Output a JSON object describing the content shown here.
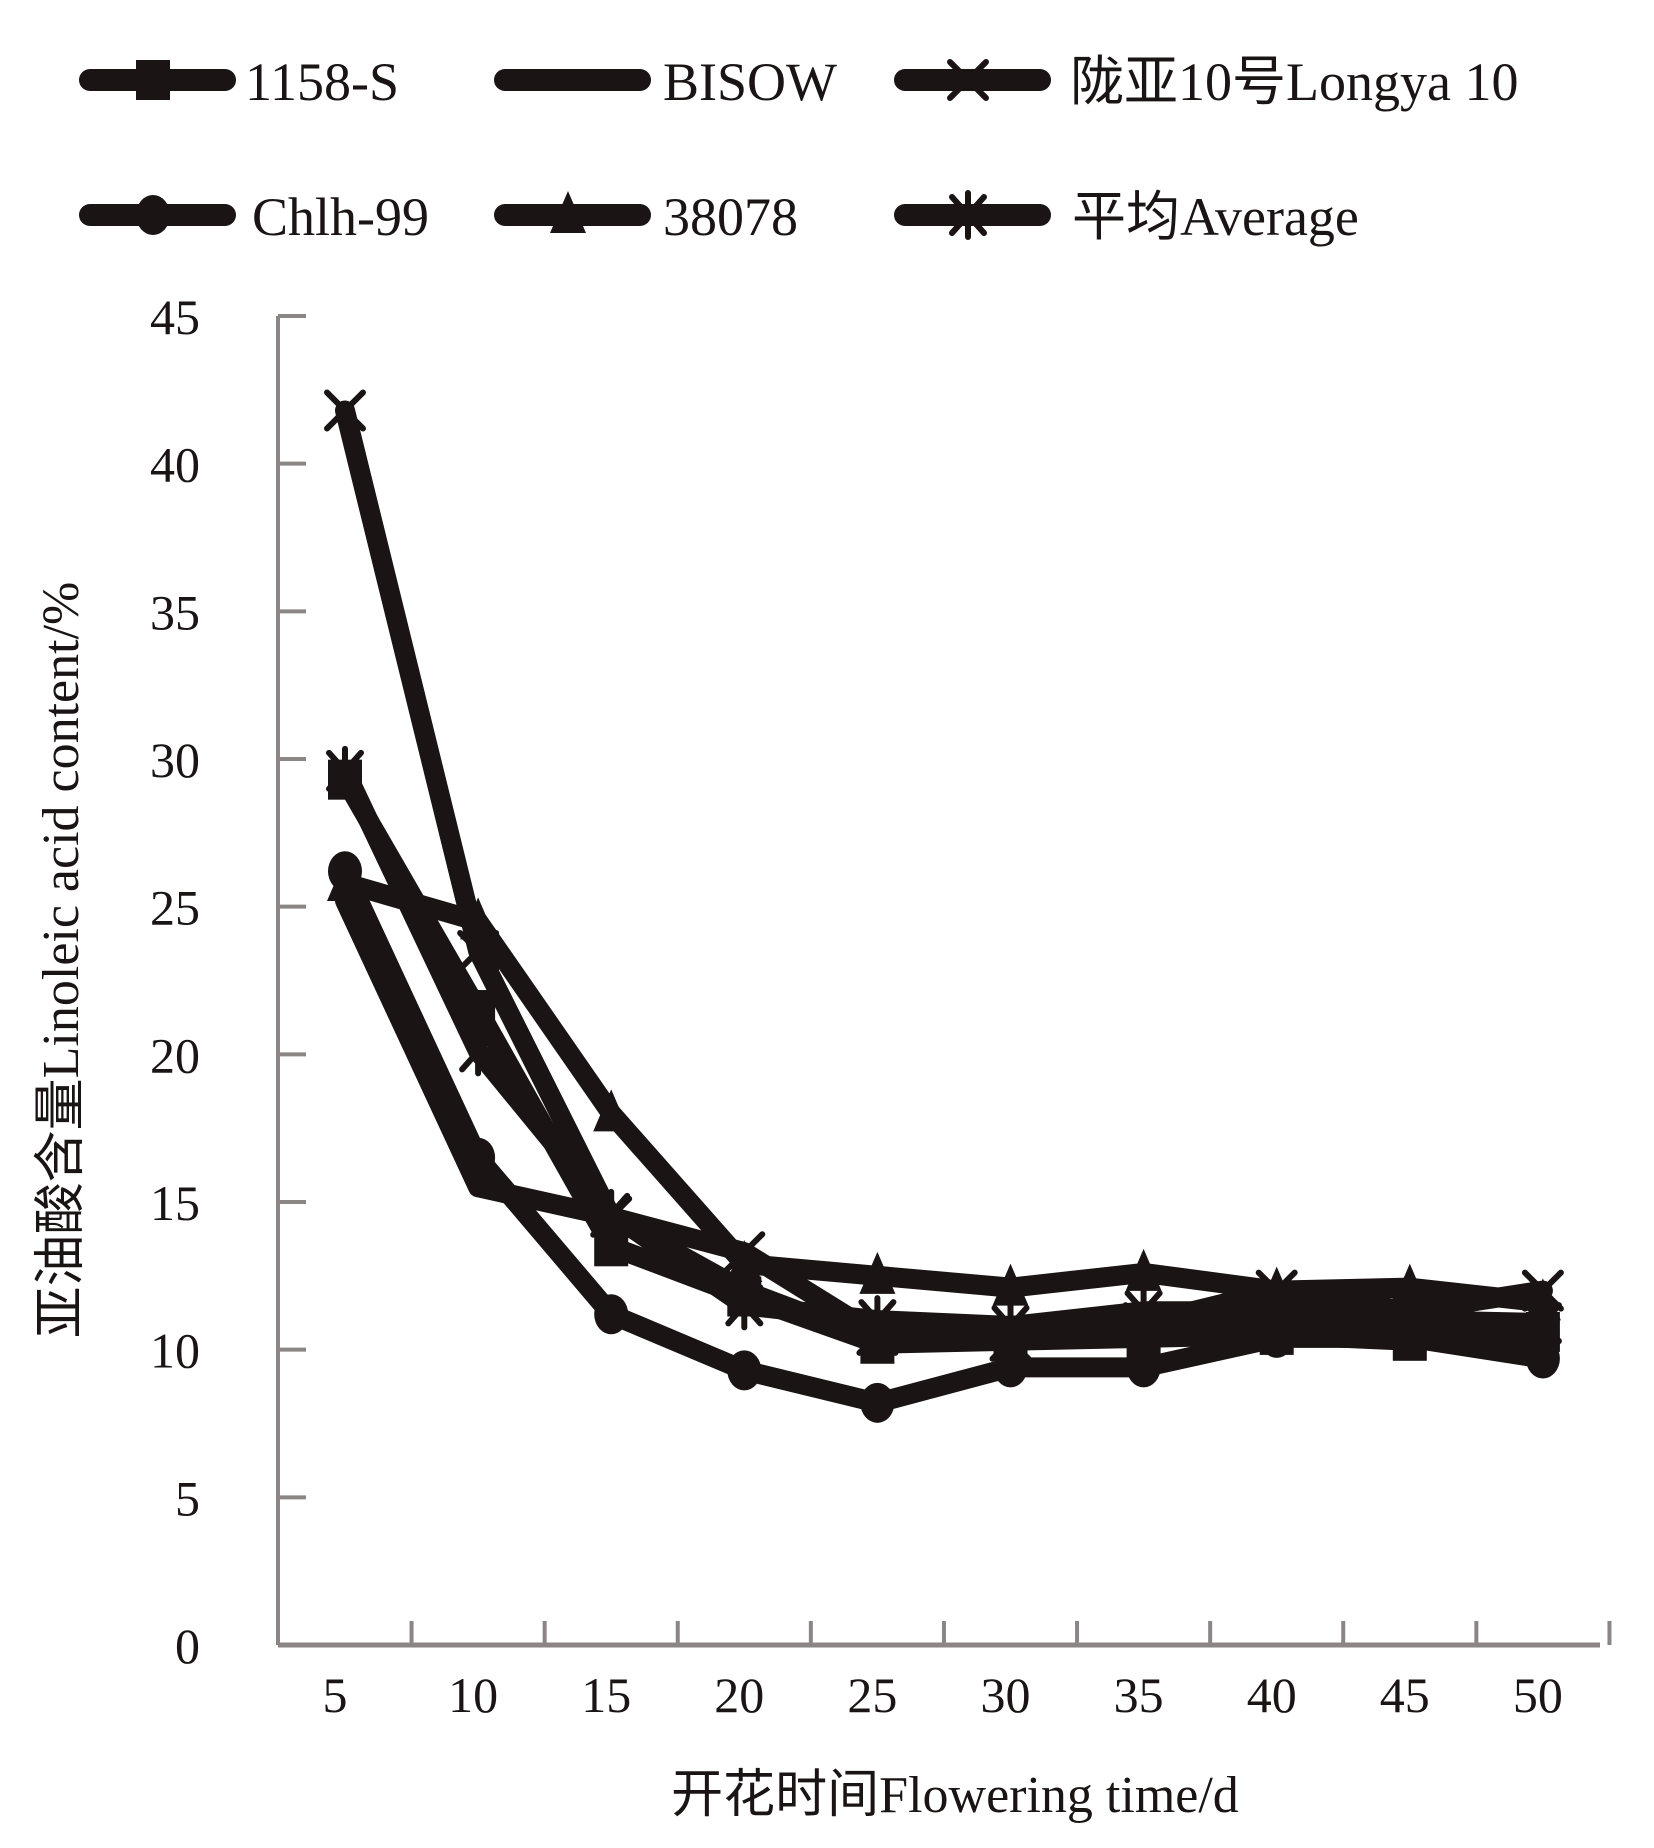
{
  "chart_data": {
    "type": "line",
    "title": "",
    "xlabel": "开花时间Flowering time/d",
    "ylabel": "亚油酸含量Linoleic acid content/%",
    "x": [
      5,
      10,
      15,
      20,
      25,
      30,
      35,
      40,
      45,
      50
    ],
    "x_tick_labels": [
      "5",
      "10",
      "15",
      "20",
      "25",
      "30",
      "35",
      "40",
      "45",
      "50"
    ],
    "y_tick_labels": [
      "0",
      "5",
      "10",
      "15",
      "20",
      "25",
      "30",
      "35",
      "40",
      "45"
    ],
    "ylim": [
      0,
      45
    ],
    "grid": false,
    "legend_position": "top",
    "series": [
      {
        "name": "1158-S",
        "marker": "square",
        "values": [
          29.3,
          21.5,
          13.5,
          11.8,
          10.2,
          10.3,
          10.4,
          10.5,
          10.3,
          10.6
        ]
      },
      {
        "name": "BISOW",
        "marker": "none",
        "values": [
          25.2,
          15.5,
          14.5,
          12.0,
          10.3,
          10.8,
          10.8,
          10.8,
          10.6,
          10.3
        ]
      },
      {
        "name": "陇亚10号Longya 10",
        "marker": "x",
        "values": [
          41.8,
          23.5,
          14.5,
          13.3,
          10.5,
          10.3,
          10.9,
          12.0,
          11.3,
          12.0
        ]
      },
      {
        "name": "Chlh-99",
        "marker": "circle",
        "values": [
          26.2,
          16.5,
          11.2,
          9.3,
          8.2,
          9.4,
          9.4,
          10.4,
          10.4,
          9.7
        ]
      },
      {
        "name": "38078",
        "marker": "triangle",
        "values": [
          25.8,
          24.5,
          18.0,
          12.9,
          12.5,
          12.1,
          12.6,
          12.0,
          12.1,
          11.6
        ]
      },
      {
        "name": "平均Average",
        "marker": "asterisk",
        "values": [
          29.6,
          20.1,
          14.6,
          11.5,
          11.0,
          10.8,
          11.3,
          11.3,
          11.0,
          10.9
        ]
      }
    ],
    "colors": {
      "series": "#1a1414",
      "axis": "#8c8585",
      "text": "#1a1414"
    }
  }
}
